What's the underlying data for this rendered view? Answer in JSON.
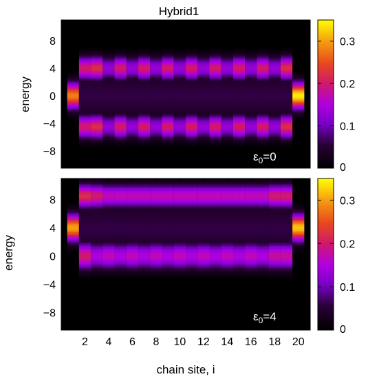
{
  "chart_data": [
    {
      "type": "heatmap",
      "title": "Hybrid1",
      "xlabel": "",
      "ylabel": "energy",
      "annotation": {
        "symbol": "ε",
        "sub": "0",
        "rest": "=0"
      },
      "x_range": [
        0,
        21
      ],
      "ylim": [
        -10.5,
        11
      ],
      "x_ticks": [
        2,
        4,
        6,
        8,
        10,
        12,
        14,
        16,
        18,
        20
      ],
      "y_ticks": [
        8,
        4,
        0,
        -4,
        -8
      ],
      "y_tick_labels": [
        "8",
        "4",
        "0",
        "−4",
        "−8"
      ],
      "colorbar": {
        "range": [
          0,
          0.35
        ],
        "ticks": [
          0.3,
          0.2,
          0.1,
          0
        ],
        "tick_labels": [
          "0.3",
          "0.2",
          "0.1",
          "0"
        ]
      },
      "sites": [
        1,
        2,
        3,
        4,
        5,
        6,
        7,
        8,
        9,
        10,
        11,
        12,
        13,
        14,
        15,
        16,
        17,
        18,
        19,
        20
      ],
      "bands": [
        {
          "center": -4.5,
          "width": 1.6,
          "values": [
            0.0,
            0.2,
            0.22,
            0.13,
            0.2,
            0.13,
            0.2,
            0.13,
            0.2,
            0.13,
            0.2,
            0.13,
            0.2,
            0.13,
            0.2,
            0.13,
            0.2,
            0.13,
            0.22,
            0.0
          ]
        },
        {
          "center": 4.0,
          "width": 1.6,
          "values": [
            0.0,
            0.2,
            0.22,
            0.13,
            0.2,
            0.13,
            0.2,
            0.13,
            0.2,
            0.13,
            0.2,
            0.13,
            0.2,
            0.13,
            0.2,
            0.13,
            0.2,
            0.13,
            0.22,
            0.0
          ]
        },
        {
          "center": 0.0,
          "width": 1.8,
          "values": [
            0.28,
            0.0,
            0.0,
            0.0,
            0.0,
            0.0,
            0.0,
            0.0,
            0.0,
            0.0,
            0.0,
            0.0,
            0.0,
            0.0,
            0.0,
            0.0,
            0.0,
            0.0,
            0.0,
            0.34
          ]
        }
      ]
    },
    {
      "type": "heatmap",
      "xlabel": "chain site, i",
      "ylabel": "energy",
      "annotation": {
        "symbol": "ε",
        "sub": "0",
        "rest": "=4"
      },
      "x_range": [
        0,
        21
      ],
      "ylim": [
        -10.5,
        11
      ],
      "x_ticks": [
        2,
        4,
        6,
        8,
        10,
        12,
        14,
        16,
        18,
        20
      ],
      "y_ticks": [
        8,
        4,
        0,
        -4,
        -8
      ],
      "y_tick_labels": [
        "8",
        "4",
        "0",
        "−4",
        "−8"
      ],
      "colorbar": {
        "range": [
          0,
          0.35
        ],
        "ticks": [
          0.3,
          0.2,
          0.1,
          0
        ],
        "tick_labels": [
          "0.3",
          "0.2",
          "0.1",
          "0"
        ]
      },
      "sites": [
        1,
        2,
        3,
        4,
        5,
        6,
        7,
        8,
        9,
        10,
        11,
        12,
        13,
        14,
        15,
        16,
        17,
        18,
        19,
        20
      ],
      "bands": [
        {
          "center": 8.5,
          "width": 1.6,
          "values": [
            0.0,
            0.22,
            0.2,
            0.17,
            0.17,
            0.17,
            0.17,
            0.17,
            0.17,
            0.17,
            0.17,
            0.17,
            0.17,
            0.17,
            0.17,
            0.17,
            0.17,
            0.2,
            0.2,
            0.0
          ]
        },
        {
          "center": 0.0,
          "width": 1.8,
          "values": [
            0.0,
            0.2,
            0.15,
            0.17,
            0.15,
            0.17,
            0.15,
            0.17,
            0.15,
            0.17,
            0.15,
            0.17,
            0.15,
            0.17,
            0.15,
            0.17,
            0.15,
            0.18,
            0.18,
            0.0
          ]
        },
        {
          "center": 4.0,
          "width": 1.8,
          "values": [
            0.3,
            0.0,
            0.0,
            0.0,
            0.0,
            0.0,
            0.0,
            0.0,
            0.0,
            0.0,
            0.0,
            0.0,
            0.0,
            0.0,
            0.0,
            0.0,
            0.0,
            0.0,
            0.0,
            0.32
          ]
        }
      ]
    }
  ]
}
